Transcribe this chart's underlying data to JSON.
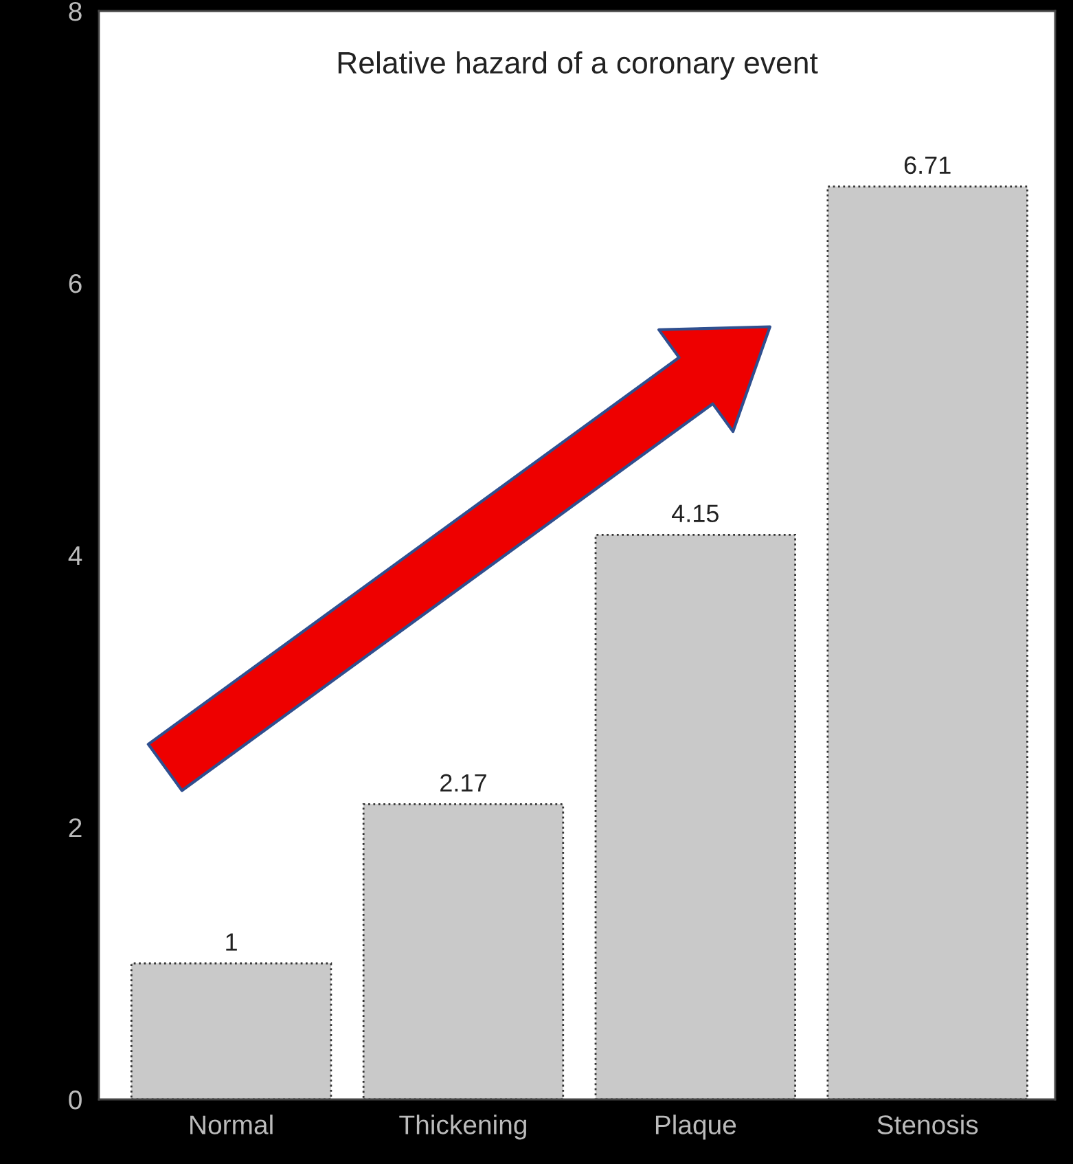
{
  "chart_data": {
    "type": "bar",
    "title": "Relative hazard of a coronary event",
    "categories": [
      "Normal",
      "Thickening",
      "Plaque",
      "Stenosis"
    ],
    "values": [
      1,
      2.17,
      4.15,
      6.71
    ],
    "color": "#c9c9c9",
    "ylim": [
      0,
      8
    ],
    "yticks": [
      0,
      2,
      4,
      6,
      8
    ],
    "grid": false,
    "data_labels": true
  }
}
